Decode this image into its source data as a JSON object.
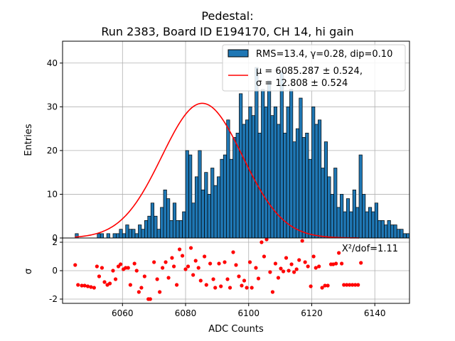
{
  "chart_data": {
    "type": "histogram",
    "title_line1": "Pedestal:",
    "title_line2": "Run 2383, Board ID E194170, CH 14, hi gain",
    "xlabel": "ADC Counts",
    "ylabel_top": "Entries",
    "ylabel_bottom": "σ",
    "xlim": [
      6041,
      6151
    ],
    "ylim_top": [
      0,
      45
    ],
    "ylim_bottom": [
      -2.3,
      2.3
    ],
    "x_ticks": [
      6060,
      6080,
      6100,
      6120,
      6140
    ],
    "y_ticks_top": [
      0,
      10,
      20,
      30,
      40
    ],
    "y_ticks_bottom": [
      -2,
      0,
      2
    ],
    "legend": {
      "hist_label": "RMS=13.4, γ=0.28, dip=0.10",
      "fit_label_line1": "μ = 6085.287 ± 0.524,",
      "fit_label_line2": "σ = 12.808 ± 0.524"
    },
    "chi2_label": "X²/dof=1.11",
    "fit": {
      "mu": 6085.287,
      "sigma": 12.808,
      "amplitude": 30.8,
      "x_range": [
        6045,
        6135
      ]
    },
    "histogram": {
      "bin_width": 1,
      "bins": [
        [
          6045,
          1
        ],
        [
          6052,
          1
        ],
        [
          6053,
          1
        ],
        [
          6055,
          1
        ],
        [
          6057,
          1
        ],
        [
          6058,
          1
        ],
        [
          6059,
          2
        ],
        [
          6060,
          1
        ],
        [
          6061,
          3
        ],
        [
          6062,
          2
        ],
        [
          6063,
          2
        ],
        [
          6064,
          1
        ],
        [
          6065,
          3
        ],
        [
          6066,
          2
        ],
        [
          6067,
          4
        ],
        [
          6068,
          5
        ],
        [
          6069,
          8
        ],
        [
          6070,
          5
        ],
        [
          6071,
          2
        ],
        [
          6072,
          7
        ],
        [
          6073,
          11
        ],
        [
          6074,
          9
        ],
        [
          6075,
          4
        ],
        [
          6076,
          8
        ],
        [
          6077,
          4
        ],
        [
          6078,
          4
        ],
        [
          6079,
          6
        ],
        [
          6080,
          20
        ],
        [
          6081,
          19
        ],
        [
          6082,
          8
        ],
        [
          6083,
          14
        ],
        [
          6084,
          20
        ],
        [
          6085,
          11
        ],
        [
          6086,
          15
        ],
        [
          6087,
          10
        ],
        [
          6088,
          16
        ],
        [
          6089,
          12
        ],
        [
          6090,
          14
        ],
        [
          6091,
          18
        ],
        [
          6092,
          19
        ],
        [
          6093,
          27
        ],
        [
          6094,
          18
        ],
        [
          6095,
          23
        ],
        [
          6096,
          24
        ],
        [
          6097,
          33
        ],
        [
          6098,
          26
        ],
        [
          6099,
          27
        ],
        [
          6100,
          30
        ],
        [
          6101,
          28
        ],
        [
          6102,
          39
        ],
        [
          6103,
          24
        ],
        [
          6104,
          34
        ],
        [
          6105,
          30
        ],
        [
          6106,
          36
        ],
        [
          6107,
          28
        ],
        [
          6108,
          30
        ],
        [
          6109,
          26
        ],
        [
          6110,
          38
        ],
        [
          6111,
          24
        ],
        [
          6112,
          30
        ],
        [
          6113,
          34
        ],
        [
          6114,
          22
        ],
        [
          6115,
          25
        ],
        [
          6116,
          32
        ],
        [
          6117,
          23
        ],
        [
          6118,
          24
        ],
        [
          6119,
          18
        ],
        [
          6120,
          30
        ],
        [
          6121,
          26
        ],
        [
          6122,
          27
        ],
        [
          6123,
          16
        ],
        [
          6124,
          22
        ],
        [
          6125,
          14
        ],
        [
          6126,
          10
        ],
        [
          6127,
          16
        ],
        [
          6128,
          7
        ],
        [
          6129,
          10
        ],
        [
          6130,
          6
        ],
        [
          6131,
          9
        ],
        [
          6132,
          6
        ],
        [
          6133,
          11
        ],
        [
          6134,
          7
        ],
        [
          6135,
          19
        ],
        [
          6136,
          10
        ],
        [
          6137,
          6
        ],
        [
          6138,
          7
        ],
        [
          6139,
          6
        ],
        [
          6140,
          8
        ],
        [
          6141,
          4
        ],
        [
          6142,
          4
        ],
        [
          6143,
          3
        ],
        [
          6144,
          4
        ],
        [
          6145,
          3
        ],
        [
          6146,
          3
        ],
        [
          6147,
          2
        ],
        [
          6148,
          2
        ],
        [
          6149,
          1
        ],
        [
          6150,
          1
        ]
      ]
    },
    "residuals": [
      [
        6045,
        0.4
      ],
      [
        6045.9,
        -1.0
      ],
      [
        6047.1,
        -1.05
      ],
      [
        6048.0,
        -1.05
      ],
      [
        6049.0,
        -1.1
      ],
      [
        6050.0,
        -1.15
      ],
      [
        6051.0,
        -1.2
      ],
      [
        6051.9,
        0.3
      ],
      [
        6052.6,
        -0.4
      ],
      [
        6053.5,
        0.2
      ],
      [
        6054.3,
        -0.8
      ],
      [
        6055.2,
        -1.0
      ],
      [
        6056.0,
        -0.9
      ],
      [
        6057.0,
        0.0
      ],
      [
        6057.8,
        -0.6
      ],
      [
        6058.7,
        0.3
      ],
      [
        6059.4,
        0.45
      ],
      [
        6060.3,
        0.1
      ],
      [
        6061.0,
        0.2
      ],
      [
        6061.8,
        0.2
      ],
      [
        6062.5,
        -1.0
      ],
      [
        6063.8,
        0.5
      ],
      [
        6064.5,
        0.0
      ],
      [
        6065.2,
        -1.5
      ],
      [
        6066.0,
        -1.2
      ],
      [
        6067.0,
        -0.4
      ],
      [
        6068.2,
        -2.0
      ],
      [
        6068.8,
        -2.0
      ],
      [
        6070.0,
        0.6
      ],
      [
        6071.0,
        -0.6
      ],
      [
        6071.8,
        -1.5
      ],
      [
        6072.7,
        0.2
      ],
      [
        6073.7,
        0.6
      ],
      [
        6074.6,
        -0.5
      ],
      [
        6075.7,
        0.9
      ],
      [
        6076.3,
        0.3
      ],
      [
        6077.2,
        -1.0
      ],
      [
        6078.1,
        1.5
      ],
      [
        6079.0,
        1.05
      ],
      [
        6080.0,
        0.1
      ],
      [
        6080.8,
        0.3
      ],
      [
        6081.7,
        1.6
      ],
      [
        6082.4,
        -0.3
      ],
      [
        6083.2,
        0.7
      ],
      [
        6084.1,
        0.2
      ],
      [
        6084.8,
        -0.7
      ],
      [
        6086.0,
        1.0
      ],
      [
        6086.6,
        -1.0
      ],
      [
        6087.8,
        0.5
      ],
      [
        6088.8,
        -0.6
      ],
      [
        6089.4,
        -1.2
      ],
      [
        6090.6,
        0.5
      ],
      [
        6091.2,
        -1.1
      ],
      [
        6092.4,
        0.6
      ],
      [
        6093.3,
        -0.6
      ],
      [
        6094.1,
        -1.2
      ],
      [
        6095.1,
        1.3
      ],
      [
        6096.0,
        0.4
      ],
      [
        6096.9,
        -0.4
      ],
      [
        6097.8,
        -1.05
      ],
      [
        6098.6,
        -0.7
      ],
      [
        6099.4,
        -1.2
      ],
      [
        6100.4,
        0.6
      ],
      [
        6101.0,
        -1.2
      ],
      [
        6102.3,
        0.2
      ],
      [
        6103.1,
        -0.55
      ],
      [
        6104.1,
        2.0
      ],
      [
        6104.9,
        1.0
      ],
      [
        6105.7,
        2.2
      ],
      [
        6106.8,
        -0.1
      ],
      [
        6107.6,
        -1.5
      ],
      [
        6108.5,
        0.5
      ],
      [
        6109.4,
        -0.5
      ],
      [
        6110.2,
        0.15
      ],
      [
        6111.0,
        -0.05
      ],
      [
        6111.9,
        0.9
      ],
      [
        6112.7,
        0.0
      ],
      [
        6113.6,
        0.45
      ],
      [
        6114.4,
        -0.1
      ],
      [
        6115.2,
        0.1
      ],
      [
        6116.0,
        0.75
      ],
      [
        6117.0,
        2.1
      ],
      [
        6117.9,
        0.6
      ],
      [
        6118.8,
        0.3
      ],
      [
        6119.7,
        -1.1
      ],
      [
        6120.6,
        1.0
      ],
      [
        6121.3,
        0.2
      ],
      [
        6122.3,
        0.3
      ],
      [
        6123.3,
        -1.2
      ],
      [
        6124.2,
        -1.05
      ],
      [
        6125.1,
        -1.05
      ],
      [
        6126.1,
        0.45
      ],
      [
        6126.8,
        0.45
      ],
      [
        6127.7,
        0.5
      ],
      [
        6128.6,
        1.25
      ],
      [
        6129.5,
        0.5
      ],
      [
        6130.2,
        -1.0
      ],
      [
        6131.1,
        -1.0
      ],
      [
        6132.0,
        -1.0
      ],
      [
        6132.9,
        -1.0
      ],
      [
        6133.8,
        -1.0
      ],
      [
        6134.7,
        -1.0
      ],
      [
        6135.6,
        0.55
      ]
    ]
  },
  "colors": {
    "bar_fill": "#1f77b4",
    "bar_edge": "#000000",
    "fit_line": "#ff0000",
    "residual_marker": "#ff0000",
    "grid": "#b0b0b0"
  }
}
